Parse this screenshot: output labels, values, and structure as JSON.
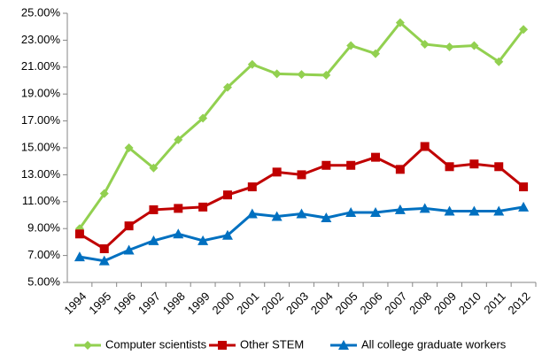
{
  "chart_data": {
    "type": "line",
    "categories": [
      "1994",
      "1995",
      "1996",
      "1997",
      "1998",
      "1999",
      "2000",
      "2001",
      "2002",
      "2003",
      "2004",
      "2005",
      "2006",
      "2007",
      "2008",
      "2009",
      "2010",
      "2011",
      "2012"
    ],
    "series": [
      {
        "name": "Computer scientists",
        "color": "#92d050",
        "marker": "diamond",
        "values": [
          9.0,
          11.6,
          15.0,
          13.5,
          15.6,
          17.2,
          19.5,
          21.2,
          20.5,
          20.45,
          20.4,
          22.6,
          22.0,
          24.3,
          22.7,
          22.5,
          22.6,
          21.4,
          23.8
        ]
      },
      {
        "name": "Other STEM",
        "color": "#c00000",
        "marker": "square",
        "values": [
          8.6,
          7.5,
          9.2,
          10.4,
          10.5,
          10.6,
          11.5,
          12.1,
          13.2,
          13.0,
          13.7,
          13.7,
          14.3,
          13.4,
          15.1,
          13.6,
          13.8,
          13.6,
          12.1
        ]
      },
      {
        "name": "All college graduate workers",
        "color": "#0070c0",
        "marker": "triangle",
        "values": [
          6.9,
          6.6,
          7.4,
          8.1,
          8.6,
          8.1,
          8.5,
          10.1,
          9.9,
          10.1,
          9.8,
          10.2,
          10.2,
          10.4,
          10.5,
          10.3,
          10.3,
          10.3,
          10.6
        ]
      }
    ],
    "ylim": [
      5,
      25
    ],
    "yticks": [
      {
        "value": 5,
        "label": "5.00%"
      },
      {
        "value": 7,
        "label": "7.00%"
      },
      {
        "value": 9,
        "label": "9.00%"
      },
      {
        "value": 11,
        "label": "11.00%"
      },
      {
        "value": 13,
        "label": "13.00%"
      },
      {
        "value": 15,
        "label": "15.00%"
      },
      {
        "value": 17,
        "label": "17.00%"
      },
      {
        "value": 19,
        "label": "19.00%"
      },
      {
        "value": 21,
        "label": "21.00%"
      },
      {
        "value": 23,
        "label": "23.00%"
      },
      {
        "value": 25,
        "label": "25.00%"
      }
    ],
    "grid": false
  }
}
